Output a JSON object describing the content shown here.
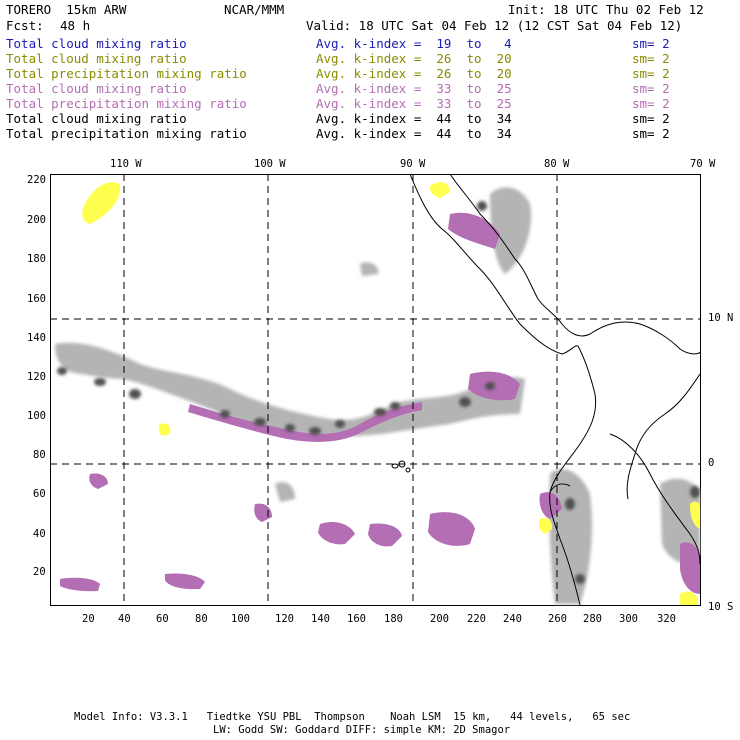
{
  "header": {
    "model": "TORERO  15km ARW",
    "org": "NCAR/MMM",
    "init": "Init: 18 UTC Thu 02 Feb 12",
    "fcst_label": "Fcst:",
    "fcst_value": "48 h",
    "valid": "Valid: 18 UTC Sat 04 Feb 12 (12 CST Sat 04 Feb 12)"
  },
  "legend": [
    {
      "field": "Total cloud mixing ratio",
      "kindex": "Avg. k-index =  19  to   4",
      "sm": "sm= 2",
      "color": "#1c1cb4"
    },
    {
      "field": "Total cloud mixing ratio",
      "kindex": "Avg. k-index =  26  to  20",
      "sm": "sm= 2",
      "color": "#8c8c00"
    },
    {
      "field": "Total precipitation mixing ratio",
      "kindex": "Avg. k-index =  26  to  20",
      "sm": "sm= 2",
      "color": "#8c8c00"
    },
    {
      "field": "Total cloud mixing ratio",
      "kindex": "Avg. k-index =  33  to  25",
      "sm": "sm= 2",
      "color": "#b46eb4"
    },
    {
      "field": "Total precipitation mixing ratio",
      "kindex": "Avg. k-index =  33  to  25",
      "sm": "sm= 2",
      "color": "#b46eb4"
    },
    {
      "field": "Total cloud mixing ratio",
      "kindex": "Avg. k-index =  44  to  34",
      "sm": "sm= 2",
      "color": "#000000"
    },
    {
      "field": "Total precipitation mixing ratio",
      "kindex": "Avg. k-index =  44  to  34",
      "sm": "sm= 2",
      "color": "#000000"
    }
  ],
  "map": {
    "lon_labels": [
      "110 W",
      "100 W",
      "90 W",
      "80 W",
      "70 W"
    ],
    "lat_labels": [
      "10 N",
      "0",
      "10 S"
    ],
    "y_ticks": [
      "220",
      "200",
      "180",
      "160",
      "140",
      "120",
      "100",
      "80",
      "60",
      "40",
      "20"
    ],
    "x_ticks": [
      "20",
      "40",
      "60",
      "80",
      "100",
      "120",
      "140",
      "160",
      "180",
      "200",
      "220",
      "240",
      "260",
      "280",
      "300",
      "320"
    ],
    "colors": {
      "light_gray": "#b4b4b4",
      "mid_gray": "#8c8c8c",
      "dark_gray": "#505050",
      "purple": "#b46eb4",
      "yellow": "#ffff50",
      "coast": "#000000"
    }
  },
  "footer": {
    "line1": "Model Info: V3.3.1   Tiedtke YSU PBL  Thompson    Noah LSM  15 km,   44 levels,   65 sec",
    "line2": "LW: Godd SW: Goddard DIFF: simple KM: 2D Smagor"
  }
}
